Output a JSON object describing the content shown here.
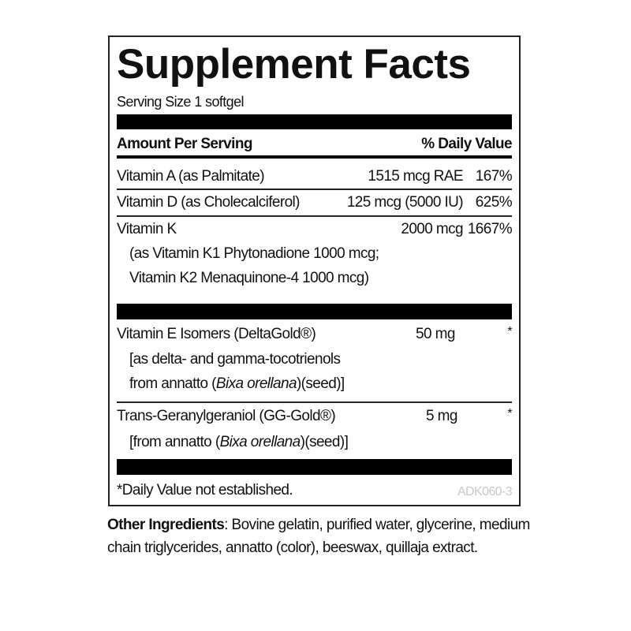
{
  "title": "Supplement Facts",
  "serving_size": "Serving Size 1 softgel",
  "header": {
    "amount": "Amount Per Serving",
    "dv": "% Daily Value"
  },
  "rows": [
    {
      "name": "Vitamin A (as Palmitate)",
      "amount": "1515 mcg RAE",
      "dv": "167%"
    },
    {
      "name": "Vitamin D (as Cholecalciferol)",
      "amount": "125 mcg (5000 IU)",
      "dv": "625%"
    },
    {
      "name": "Vitamin K",
      "amount": "2000 mcg",
      "dv": "1667%",
      "sub1": "(as Vitamin K1 Phytonadione 1000 mcg;",
      "sub2": "Vitamin K2 Menaquinone-4 1000 mcg)"
    },
    {
      "name": "Vitamin E Isomers (DeltaGold®)",
      "amount": "50 mg",
      "dv": "*",
      "sub1": "[as delta- and gamma-tocotrienols",
      "sub2a": "from annatto (",
      "sub2b": "Bixa orellana",
      "sub2c": ")(seed)]"
    },
    {
      "name": "Trans-Geranylgeraniol (GG-Gold®)",
      "amount": "5 mg",
      "dv": "*",
      "sub1a": "[from annatto (",
      "sub1b": "Bixa orellana",
      "sub1c": ")(seed)]"
    }
  ],
  "footnote": "*Daily Value not established.",
  "code": "ADK060-3",
  "other_ingredients": {
    "label": "Other Ingredients",
    "text": ": Bovine gelatin, purified water, glycerine, medium chain triglycerides, annatto (color), beeswax, quillaja extract."
  }
}
